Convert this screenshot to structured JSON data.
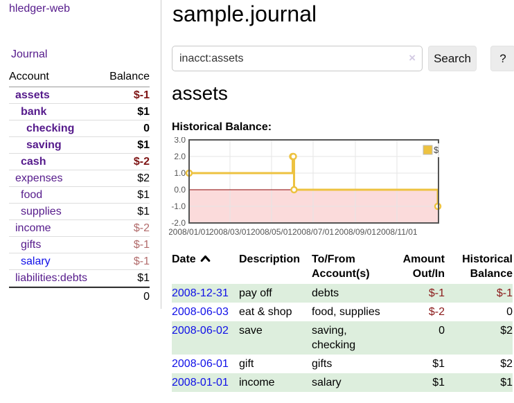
{
  "palette": {
    "link_purple": "#551A8B",
    "link_blue": "#0F0FE8",
    "negative_bold": "#7E1414",
    "negative_dim": "#B26B6B",
    "negative_table": "#8B1A1A",
    "row_stripe_green": "#DDEEDD",
    "chart_line": "#EDC240",
    "chart_negative_fill": "#FBDBDB",
    "chart_zero_line": "#8B0000",
    "chart_border": "#545454"
  },
  "sidebar": {
    "brand": "hledger-web",
    "nav": {
      "journal": "Journal"
    },
    "table": {
      "headers": {
        "account": "Account",
        "balance": "Balance"
      },
      "rows": [
        {
          "account": "assets",
          "depth": 1,
          "bold": true,
          "balance": "$-1",
          "negative": true,
          "unvisited": false
        },
        {
          "account": "bank",
          "depth": 2,
          "bold": true,
          "balance": "$1",
          "negative": false,
          "unvisited": false
        },
        {
          "account": "checking",
          "depth": 3,
          "bold": true,
          "balance": "0",
          "negative": false,
          "unvisited": false
        },
        {
          "account": "saving",
          "depth": 3,
          "bold": true,
          "balance": "$1",
          "negative": false,
          "unvisited": false
        },
        {
          "account": "cash",
          "depth": 2,
          "bold": true,
          "balance": "$-2",
          "negative": true,
          "unvisited": false
        },
        {
          "account": "expenses",
          "depth": 1,
          "bold": false,
          "balance": "$2",
          "negative": false,
          "unvisited": false
        },
        {
          "account": "food",
          "depth": 2,
          "bold": false,
          "balance": "$1",
          "negative": false,
          "unvisited": false
        },
        {
          "account": "supplies",
          "depth": 2,
          "bold": false,
          "balance": "$1",
          "negative": false,
          "unvisited": false
        },
        {
          "account": "income",
          "depth": 1,
          "bold": false,
          "balance": "$-2",
          "negative": true,
          "unvisited": false
        },
        {
          "account": "gifts",
          "depth": 2,
          "bold": false,
          "balance": "$-1",
          "negative": true,
          "unvisited": false
        },
        {
          "account": "salary",
          "depth": 2,
          "bold": false,
          "balance": "$-1",
          "negative": true,
          "unvisited": true
        },
        {
          "account": "liabilities:debts",
          "depth": 1,
          "bold": false,
          "balance": "$1",
          "negative": false,
          "unvisited": false
        }
      ],
      "total": "0"
    }
  },
  "header": {
    "title": "sample.journal"
  },
  "search": {
    "value": "inacct:assets",
    "clear_icon": "×",
    "search_button": "Search",
    "help_button": "?"
  },
  "account_page": {
    "title": "assets",
    "chart_heading": "Historical Balance:"
  },
  "chart_data": {
    "type": "line",
    "line_style": "steps",
    "title": "Historical Balance of assets",
    "x_type": "date",
    "x_range": [
      "2008-01-01",
      "2009-01-01"
    ],
    "x_tick_labels": [
      "2008/01/01",
      "2008/03/01",
      "2008/05/01",
      "2008/07/01",
      "2008/09/01",
      "2008/11/01"
    ],
    "ylim": [
      -2,
      3
    ],
    "y_ticks": [
      3,
      2,
      1,
      0,
      -1,
      -2
    ],
    "y_tick_labels": [
      "3.0",
      "2.0",
      "1.0",
      "0.0",
      "-1.0",
      "-2.0"
    ],
    "grid": true,
    "negative_region_shaded": true,
    "legend": {
      "position": "top-right",
      "entries": [
        {
          "label": "$",
          "color": "#EDC240"
        }
      ]
    },
    "series": [
      {
        "name": "$",
        "points": [
          {
            "x": "2008-01-01",
            "y": 1
          },
          {
            "x": "2008-06-01",
            "y": 2
          },
          {
            "x": "2008-06-02",
            "y": 2
          },
          {
            "x": "2008-06-03",
            "y": 0
          },
          {
            "x": "2008-12-31",
            "y": -1
          }
        ]
      }
    ]
  },
  "register": {
    "headers": {
      "date": "Date",
      "description": "Description",
      "accounts": "To/From Account(s)",
      "amount": "Amount Out/In",
      "balance": "Historical Balance"
    },
    "sort": {
      "column": "date",
      "direction": "ascending"
    },
    "rows": [
      {
        "date": "2008-12-31",
        "description": "pay off",
        "accounts": "debts",
        "amount": "$-1",
        "amount_negative": true,
        "balance": "$-1",
        "balance_negative": true
      },
      {
        "date": "2008-06-03",
        "description": "eat & shop",
        "accounts": "food, supplies",
        "amount": "$-2",
        "amount_negative": true,
        "balance": "0",
        "balance_negative": false
      },
      {
        "date": "2008-06-02",
        "description": "save",
        "accounts": "saving, checking",
        "amount": "0",
        "amount_negative": false,
        "balance": "$2",
        "balance_negative": false
      },
      {
        "date": "2008-06-01",
        "description": "gift",
        "accounts": "gifts",
        "amount": "$1",
        "amount_negative": false,
        "balance": "$2",
        "balance_negative": false
      },
      {
        "date": "2008-01-01",
        "description": "income",
        "accounts": "salary",
        "amount": "$1",
        "amount_negative": false,
        "balance": "$1",
        "balance_negative": false
      }
    ]
  }
}
